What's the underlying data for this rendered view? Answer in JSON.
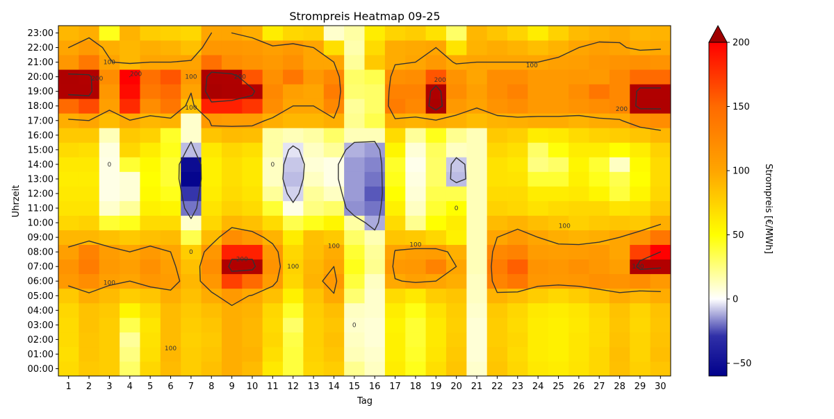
{
  "chart_data": {
    "type": "heatmap",
    "title": "Strompreis Heatmap 09-25",
    "xlabel": "Tag",
    "ylabel": "Uhrzeit",
    "colorbar_label": "Strompreis [€/MWh]",
    "colorbar_ticks": [
      -50,
      0,
      50,
      100,
      150,
      200
    ],
    "colorbar_range": [
      -60,
      200
    ],
    "x": [
      1,
      2,
      3,
      4,
      5,
      6,
      7,
      8,
      9,
      10,
      11,
      12,
      13,
      14,
      15,
      16,
      17,
      18,
      19,
      20,
      21,
      22,
      23,
      24,
      25,
      26,
      27,
      28,
      29,
      30
    ],
    "y": [
      "00:00",
      "01:00",
      "02:00",
      "03:00",
      "04:00",
      "05:00",
      "06:00",
      "07:00",
      "08:00",
      "09:00",
      "10:00",
      "11:00",
      "12:00",
      "13:00",
      "14:00",
      "15:00",
      "16:00",
      "17:00",
      "18:00",
      "19:00",
      "20:00",
      "21:00",
      "22:00",
      "23:00"
    ],
    "contour_levels": [
      0,
      100,
      200
    ],
    "contour_labels": [
      {
        "text": "0",
        "day": 3,
        "hour": 14
      },
      {
        "text": "0",
        "day": 7,
        "hour": 8
      },
      {
        "text": "0",
        "day": 11,
        "hour": 14
      },
      {
        "text": "0",
        "day": 15,
        "hour": 3
      },
      {
        "text": "0",
        "day": 20,
        "hour": 11
      },
      {
        "text": "100",
        "day": 3,
        "hour": 21
      },
      {
        "text": "100",
        "day": 7,
        "hour": 20
      },
      {
        "text": "100",
        "day": 7,
        "hour": 17.9
      },
      {
        "text": "100",
        "day": 3,
        "hour": 5.9
      },
      {
        "text": "100",
        "day": 6,
        "hour": 1.4
      },
      {
        "text": "100",
        "day": 12,
        "hour": 7
      },
      {
        "text": "100",
        "day": 14,
        "hour": 8.4
      },
      {
        "text": "100",
        "day": 18,
        "hour": 8.5
      },
      {
        "text": "100",
        "day": 23.7,
        "hour": 20.8
      },
      {
        "text": "100",
        "day": 25.3,
        "hour": 9.8
      },
      {
        "text": "100",
        "day": 28.9,
        "hour": 7
      },
      {
        "text": "200",
        "day": 2.4,
        "hour": 19.9
      },
      {
        "text": "200",
        "day": 4.3,
        "hour": 20.2
      },
      {
        "text": "200",
        "day": 9.4,
        "hour": 20
      },
      {
        "text": "200",
        "day": 9.5,
        "hour": 7.5
      },
      {
        "text": "200",
        "day": 19.2,
        "hour": 19.8
      },
      {
        "text": "200",
        "day": 28.1,
        "hour": 17.8
      }
    ],
    "values": [
      [
        70,
        80,
        78,
        30,
        72,
        88,
        78,
        85,
        95,
        88,
        62,
        38,
        73,
        78,
        22,
        12,
        60,
        45,
        68,
        82,
        10,
        82,
        72,
        62,
        60,
        65,
        72,
        85,
        76,
        82
      ],
      [
        68,
        82,
        78,
        25,
        68,
        90,
        78,
        82,
        95,
        92,
        68,
        38,
        75,
        82,
        14,
        10,
        58,
        42,
        64,
        80,
        8,
        80,
        70,
        60,
        58,
        64,
        72,
        86,
        74,
        86
      ],
      [
        70,
        82,
        78,
        20,
        66,
        88,
        76,
        80,
        95,
        90,
        72,
        36,
        76,
        85,
        12,
        8,
        58,
        40,
        62,
        78,
        8,
        78,
        72,
        60,
        58,
        64,
        70,
        84,
        74,
        84
      ],
      [
        70,
        84,
        78,
        35,
        64,
        88,
        78,
        82,
        95,
        90,
        70,
        30,
        76,
        82,
        10,
        8,
        56,
        40,
        62,
        76,
        8,
        78,
        70,
        60,
        58,
        62,
        70,
        82,
        72,
        82
      ],
      [
        72,
        84,
        80,
        55,
        70,
        88,
        80,
        86,
        95,
        92,
        72,
        42,
        78,
        86,
        12,
        10,
        60,
        46,
        66,
        78,
        10,
        80,
        72,
        62,
        60,
        64,
        72,
        84,
        74,
        84
      ],
      [
        80,
        95,
        88,
        78,
        82,
        95,
        85,
        96,
        110,
        98,
        85,
        58,
        82,
        98,
        28,
        10,
        70,
        62,
        78,
        82,
        12,
        92,
        86,
        78,
        72,
        78,
        86,
        96,
        90,
        96
      ],
      [
        110,
        120,
        105,
        100,
        112,
        108,
        90,
        112,
        170,
        150,
        108,
        72,
        92,
        110,
        38,
        12,
        98,
        104,
        100,
        95,
        12,
        128,
        140,
        112,
        110,
        112,
        118,
        115,
        120,
        110
      ],
      [
        115,
        135,
        110,
        105,
        118,
        105,
        85,
        120,
        215,
        215,
        115,
        75,
        90,
        100,
        45,
        22,
        110,
        112,
        130,
        100,
        14,
        135,
        155,
        115,
        112,
        118,
        112,
        105,
        220,
        210
      ],
      [
        105,
        130,
        108,
        100,
        110,
        100,
        78,
        112,
        185,
        185,
        110,
        72,
        86,
        96,
        40,
        20,
        102,
        106,
        108,
        94,
        14,
        125,
        130,
        108,
        106,
        108,
        110,
        100,
        170,
        200
      ],
      [
        90,
        90,
        85,
        80,
        85,
        88,
        35,
        88,
        120,
        110,
        92,
        60,
        85,
        80,
        30,
        15,
        82,
        80,
        72,
        58,
        14,
        100,
        110,
        100,
        95,
        92,
        95,
        100,
        115,
        140
      ],
      [
        72,
        75,
        40,
        45,
        70,
        70,
        10,
        72,
        90,
        85,
        70,
        35,
        45,
        55,
        18,
        -15,
        70,
        22,
        50,
        60,
        14,
        88,
        92,
        86,
        82,
        76,
        80,
        82,
        80,
        95
      ],
      [
        65,
        65,
        10,
        20,
        58,
        55,
        -25,
        65,
        75,
        70,
        40,
        5,
        25,
        30,
        -20,
        -25,
        58,
        12,
        40,
        50,
        14,
        75,
        72,
        66,
        70,
        72,
        72,
        65,
        68,
        80
      ],
      [
        62,
        62,
        5,
        8,
        52,
        45,
        -38,
        60,
        70,
        65,
        20,
        -8,
        20,
        12,
        -18,
        -30,
        50,
        8,
        35,
        35,
        14,
        70,
        70,
        60,
        60,
        62,
        55,
        38,
        55,
        72
      ],
      [
        60,
        60,
        5,
        8,
        50,
        40,
        -58,
        58,
        68,
        62,
        12,
        -12,
        12,
        5,
        -18,
        -25,
        45,
        6,
        30,
        -12,
        14,
        66,
        65,
        40,
        40,
        58,
        45,
        35,
        50,
        70
      ],
      [
        62,
        62,
        5,
        40,
        52,
        40,
        -55,
        58,
        68,
        62,
        12,
        -10,
        8,
        5,
        -18,
        -22,
        42,
        4,
        30,
        -10,
        14,
        66,
        62,
        25,
        30,
        55,
        40,
        12,
        52,
        70
      ],
      [
        70,
        68,
        6,
        72,
        60,
        45,
        -12,
        62,
        72,
        68,
        18,
        -5,
        12,
        20,
        -14,
        -18,
        55,
        8,
        32,
        12,
        14,
        72,
        68,
        30,
        48,
        60,
        60,
        50,
        60,
        75
      ],
      [
        80,
        80,
        14,
        80,
        75,
        42,
        10,
        82,
        88,
        86,
        18,
        14,
        18,
        30,
        14,
        14,
        70,
        20,
        45,
        22,
        14,
        80,
        76,
        60,
        62,
        70,
        75,
        78,
        82,
        90
      ],
      [
        95,
        100,
        88,
        98,
        90,
        92,
        10,
        110,
        108,
        108,
        95,
        90,
        90,
        95,
        22,
        35,
        95,
        92,
        96,
        94,
        88,
        92,
        94,
        96,
        96,
        92,
        96,
        98,
        115,
        120
      ],
      [
        150,
        165,
        105,
        180,
        120,
        140,
        85,
        185,
        185,
        175,
        120,
        100,
        100,
        125,
        20,
        30,
        135,
        125,
        240,
        110,
        102,
        115,
        120,
        110,
        110,
        115,
        120,
        125,
        220,
        220
      ],
      [
        215,
        215,
        112,
        195,
        138,
        150,
        102,
        240,
        225,
        210,
        125,
        105,
        100,
        135,
        28,
        30,
        130,
        130,
        225,
        120,
        105,
        120,
        130,
        110,
        110,
        120,
        140,
        125,
        215,
        215
      ],
      [
        220,
        210,
        120,
        200,
        145,
        160,
        110,
        225,
        220,
        160,
        118,
        140,
        110,
        125,
        30,
        35,
        118,
        120,
        160,
        115,
        100,
        120,
        120,
        110,
        110,
        112,
        110,
        125,
        150,
        150
      ],
      [
        112,
        138,
        102,
        90,
        100,
        100,
        102,
        145,
        120,
        115,
        110,
        118,
        100,
        100,
        20,
        80,
        96,
        100,
        110,
        98,
        100,
        100,
        100,
        100,
        104,
        106,
        112,
        115,
        118,
        115
      ],
      [
        100,
        110,
        95,
        90,
        95,
        92,
        85,
        112,
        112,
        110,
        105,
        110,
        100,
        68,
        16,
        70,
        96,
        98,
        100,
        65,
        92,
        96,
        92,
        86,
        92,
        100,
        105,
        102,
        96,
        98
      ],
      [
        90,
        95,
        45,
        92,
        78,
        75,
        72,
        100,
        100,
        95,
        60,
        72,
        75,
        10,
        18,
        60,
        74,
        78,
        66,
        30,
        90,
        82,
        74,
        60,
        75,
        88,
        92,
        96,
        90,
        92
      ]
    ]
  }
}
